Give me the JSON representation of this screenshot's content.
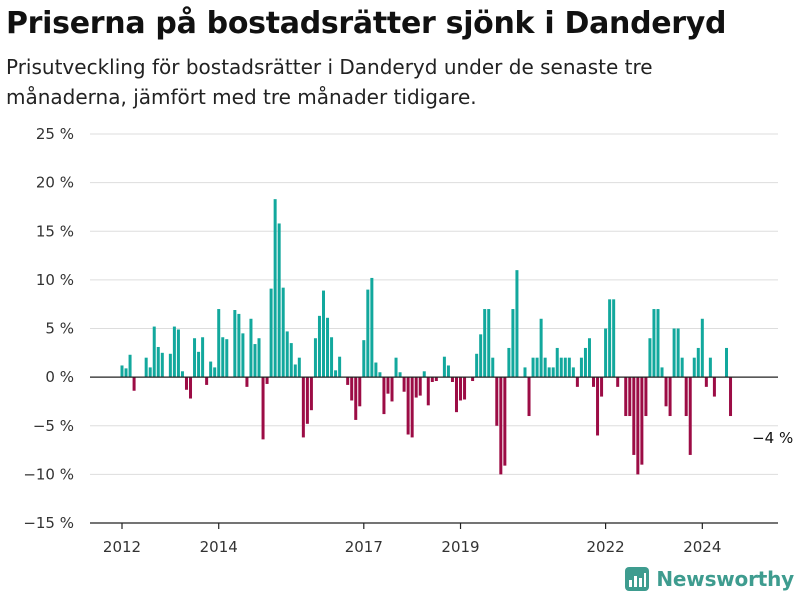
{
  "header": {
    "title": "Priserna på bostadsrätter sjönk i Danderyd",
    "subtitle": "Prisutveckling för bostadsrätter i Danderyd under de senaste tre månaderna, jämfört med tre månader tidigare."
  },
  "brand": {
    "name": "Newsworthy",
    "icon": "bar-chart-logo-icon",
    "color": "#3e9c8f"
  },
  "colors": {
    "positive": "#12a89d",
    "negative": "#9c0c45",
    "grid": "#dddddd",
    "axis": "#222222"
  },
  "chart_data": {
    "type": "bar",
    "title": "Priserna på bostadsrätter sjönk i Danderyd",
    "subtitle": "Prisutveckling för bostadsrätter i Danderyd under de senaste tre månaderna, jämfört med tre månader tidigare.",
    "xlabel": "",
    "ylabel": "",
    "ylim": [
      -15,
      25
    ],
    "yticks": [
      25,
      20,
      15,
      10,
      5,
      0,
      -5,
      -10,
      -15
    ],
    "ytick_labels": [
      "25 %",
      "20 %",
      "15 %",
      "10 %",
      "5 %",
      "0 %",
      "−5 %",
      "−10 %",
      "−15 %"
    ],
    "xticks": [
      2012,
      2014,
      2017,
      2019,
      2022,
      2024
    ],
    "xtick_labels": [
      "2012",
      "2014",
      "2017",
      "2019",
      "2022",
      "2024"
    ],
    "x_unit": "month",
    "start": "2012-01",
    "grid": true,
    "legend": "none",
    "annotations": [
      {
        "x": "2025-01",
        "y": -4,
        "text": "−4 %"
      }
    ],
    "values": [
      1.2,
      0.9,
      2.3,
      -1.4,
      0,
      0,
      2.0,
      1.0,
      5.2,
      3.1,
      2.5,
      0,
      2.4,
      5.2,
      4.9,
      0.6,
      -1.3,
      -2.2,
      4.0,
      2.6,
      4.1,
      -0.8,
      1.6,
      1.0,
      7.0,
      4.1,
      3.9,
      0,
      6.9,
      6.5,
      4.5,
      -1.0,
      6.0,
      3.4,
      4.0,
      -6.4,
      -0.7,
      9.1,
      18.3,
      15.8,
      9.2,
      4.7,
      3.5,
      1.3,
      2.0,
      -6.2,
      -4.8,
      -3.4,
      4.0,
      6.3,
      8.9,
      6.1,
      4.1,
      0.7,
      2.1,
      0,
      -0.8,
      -2.4,
      -4.4,
      -3.0,
      3.8,
      9.0,
      10.2,
      1.5,
      0.5,
      -3.8,
      -1.7,
      -2.5,
      2.0,
      0.5,
      -1.5,
      -5.9,
      -6.2,
      -2.1,
      -1.9,
      0.6,
      -2.9,
      -0.5,
      -0.4,
      0,
      2.1,
      1.2,
      -0.5,
      -3.6,
      -2.4,
      -2.3,
      0,
      -0.4,
      2.4,
      4.4,
      7.0,
      7.0,
      2.0,
      -5.0,
      -10.0,
      -9.1,
      3.0,
      7.0,
      11.0,
      0,
      1.0,
      -4.0,
      2.0,
      2.0,
      6.0,
      2.0,
      1.0,
      1.0,
      3.0,
      2.0,
      2.0,
      2.0,
      1.0,
      -1.0,
      2.0,
      3.0,
      4.0,
      -1.0,
      -6.0,
      -2.0,
      5.0,
      8.0,
      8.0,
      -1.0,
      0,
      -4.0,
      -4.0,
      -8.0,
      -10.0,
      -9.0,
      -4.0,
      4.0,
      7.0,
      7.0,
      1.0,
      -3.0,
      -4.0,
      5.0,
      5.0,
      2.0,
      -4.0,
      -8.0,
      2.0,
      3.0,
      6.0,
      -1.0,
      2.0,
      -2.0,
      0,
      0,
      3.0,
      -4.0
    ]
  }
}
